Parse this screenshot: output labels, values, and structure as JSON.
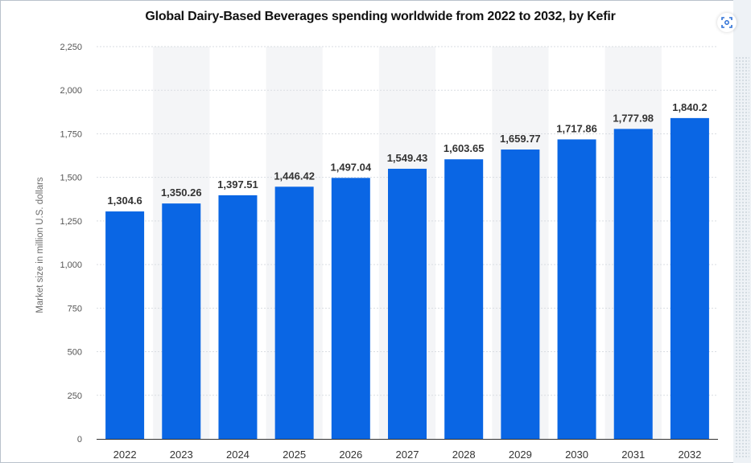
{
  "chart_data": {
    "type": "bar",
    "title": "Global Dairy-Based Beverages spending worldwide from 2022 to 2032, by Kefir",
    "xlabel": "",
    "ylabel": "Market size in million U.S. dollars",
    "categories": [
      "2022",
      "2023",
      "2024",
      "2025",
      "2026",
      "2027",
      "2028",
      "2029",
      "2030",
      "2031",
      "2032"
    ],
    "values": [
      1304.6,
      1350.26,
      1397.51,
      1446.42,
      1497.04,
      1549.43,
      1603.65,
      1659.77,
      1717.86,
      1777.98,
      1840.2
    ],
    "data_labels": [
      "1,304.6",
      "1,350.26",
      "1,397.51",
      "1,446.42",
      "1,497.04",
      "1,549.43",
      "1,603.65",
      "1,659.77",
      "1,717.86",
      "1,777.98",
      "1,840.2"
    ],
    "ylim": [
      0,
      2250
    ],
    "yticks": [
      0,
      250,
      500,
      750,
      1000,
      1250,
      1500,
      1750,
      2000,
      2250
    ],
    "ytick_labels": [
      "0",
      "250",
      "500",
      "750",
      "1,000",
      "1,250",
      "1,500",
      "1,750",
      "2,000",
      "2,250"
    ],
    "grid": true,
    "bar_color": "#0a66e4",
    "band_color": "#f4f5f7"
  },
  "toolbar": {
    "icon": "screenshot-icon"
  }
}
